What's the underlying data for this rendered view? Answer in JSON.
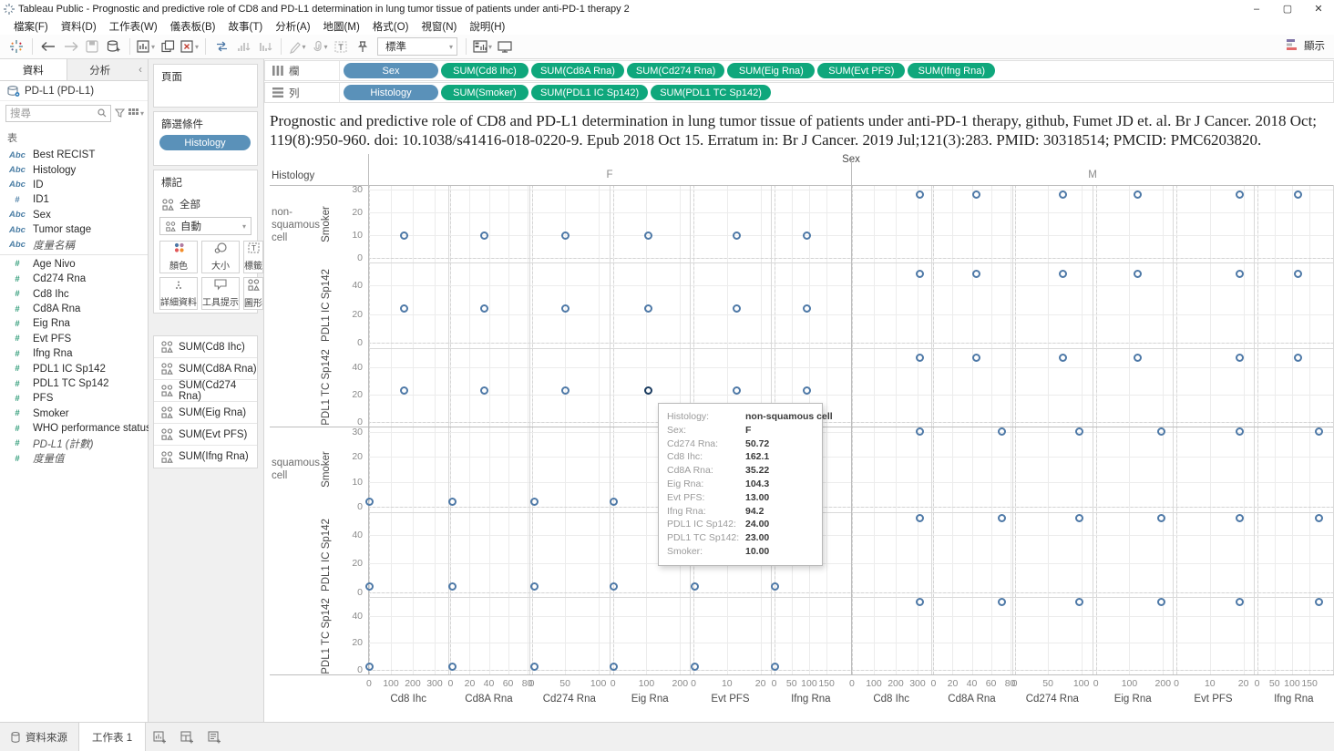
{
  "window": {
    "title": "Tableau Public - Prognostic and predictive role of CD8 and PD-L1 determination in lung tumor tissue of patients under anti-PD-1 therapy 2",
    "minimize": "–",
    "maximize": "▢",
    "close": "✕"
  },
  "menu": {
    "items": [
      "檔案(F)",
      "資料(D)",
      "工作表(W)",
      "儀表板(B)",
      "故事(T)",
      "分析(A)",
      "地圖(M)",
      "格式(O)",
      "視窗(N)",
      "說明(H)"
    ]
  },
  "toolbar": {
    "fit_dropdown": "標準",
    "show_me_label": "顯示"
  },
  "sidebar": {
    "data_tab": "資料",
    "analytics_tab": "分析",
    "collapse": "‹",
    "datasource": "PD-L1 (PD-L1)",
    "search_placeholder": "搜尋",
    "tables_label": "表",
    "fields": [
      {
        "icon": "Abc",
        "name": "Best RECIST"
      },
      {
        "icon": "Abc",
        "name": "Histology"
      },
      {
        "icon": "Abc",
        "name": "ID"
      },
      {
        "icon": "#",
        "name": "ID1",
        "blue": true
      },
      {
        "icon": "Abc",
        "name": "Sex"
      },
      {
        "icon": "Abc",
        "name": "Tumor stage"
      },
      {
        "icon": "Abc",
        "name": "度量名稱",
        "italic": true
      },
      {
        "divider": true
      },
      {
        "icon": "#",
        "name": "Age Nivo"
      },
      {
        "icon": "#",
        "name": "Cd274 Rna"
      },
      {
        "icon": "#",
        "name": "Cd8 Ihc"
      },
      {
        "icon": "#",
        "name": "Cd8A Rna"
      },
      {
        "icon": "#",
        "name": "Eig Rna"
      },
      {
        "icon": "#",
        "name": "Evt PFS"
      },
      {
        "icon": "#",
        "name": "Ifng Rna"
      },
      {
        "icon": "#",
        "name": "PDL1 IC Sp142"
      },
      {
        "icon": "#",
        "name": "PDL1 TC Sp142"
      },
      {
        "icon": "#",
        "name": "PFS"
      },
      {
        "icon": "#",
        "name": "Smoker"
      },
      {
        "icon": "#",
        "name": "WHO performance status"
      },
      {
        "icon": "#",
        "name": "PD-L1 (計數)",
        "italic": true
      },
      {
        "icon": "#",
        "name": "度量值",
        "italic": true
      }
    ]
  },
  "cards": {
    "pages_title": "頁面",
    "filters_title": "篩選條件",
    "filter_pill": "Histology",
    "marks_title": "標記",
    "marks_all": "全部",
    "marks_type": "自動",
    "buttons": [
      "顏色",
      "大小",
      "標籤",
      "詳細資料",
      "工具提示",
      "圖形"
    ],
    "shape_items": [
      "SUM(Cd8 Ihc)",
      "SUM(Cd8A Rna)",
      "SUM(Cd274 Rna)",
      "SUM(Eig Rna)",
      "SUM(Evt PFS)",
      "SUM(Ifng Rna)"
    ]
  },
  "shelves": {
    "columns_label": "欄",
    "rows_label": "列",
    "columns_pills": [
      {
        "label": "Sex",
        "type": "dim"
      },
      {
        "label": "SUM(Cd8 Ihc)",
        "type": "meas"
      },
      {
        "label": "SUM(Cd8A Rna)",
        "type": "meas"
      },
      {
        "label": "SUM(Cd274 Rna)",
        "type": "meas"
      },
      {
        "label": "SUM(Eig Rna)",
        "type": "meas"
      },
      {
        "label": "SUM(Evt PFS)",
        "type": "meas"
      },
      {
        "label": "SUM(Ifng Rna)",
        "type": "meas"
      }
    ],
    "rows_pills": [
      {
        "label": "Histology",
        "type": "dim"
      },
      {
        "label": "SUM(Smoker)",
        "type": "meas"
      },
      {
        "label": "SUM(PDL1 IC Sp142)",
        "type": "meas"
      },
      {
        "label": "SUM(PDL1 TC Sp142)",
        "type": "meas"
      }
    ]
  },
  "viz": {
    "title": "Prognostic and predictive role of CD8 and PD-L1 determination in lung tumor tissue of patients under anti-PD-1 therapy, github, Fumet JD et. al. Br J Cancer. 2018 Oct; 119(8):950-960. doi: 10.1038/s41416-018-0220-9. Epub 2018 Oct 15. Erratum in: Br J Cancer. 2019 Jul;121(3):283. PMID: 30318514; PMCID: PMC6203820.",
    "col_field_label": "Sex",
    "row_field_label": "Histology"
  },
  "chart_data": {
    "type": "scatter",
    "layout": "scatter-matrix 12 columns x 6 rows; columns = 6 x-measures repeated for Sex F then M; rows = 3 y-measures repeated for each Histology group; one SUM mark per pane",
    "col_groups": [
      "F",
      "M"
    ],
    "row_groups": [
      "non-squamous cell",
      "squamous cell"
    ],
    "x_measures": [
      {
        "name": "Cd8 Ihc",
        "ticks": [
          0,
          100,
          200,
          300
        ],
        "min": -4,
        "max": 364
      },
      {
        "name": "Cd8A Rna",
        "ticks": [
          0,
          20,
          40,
          60,
          80
        ],
        "min": -2,
        "max": 82
      },
      {
        "name": "Cd274 Rna",
        "ticks": [
          0,
          50,
          100
        ],
        "min": -4,
        "max": 117
      },
      {
        "name": "Eig Rna",
        "ticks": [
          0,
          100,
          200
        ],
        "min": -10,
        "max": 230
      },
      {
        "name": "Evt PFS",
        "ticks": [
          0,
          10,
          20
        ],
        "min": -1,
        "max": 23
      },
      {
        "name": "Ifng Rna",
        "ticks": [
          0,
          50,
          100,
          150
        ],
        "min": -10,
        "max": 220
      }
    ],
    "y_measures": [
      {
        "name": "Smoker",
        "ticks": [
          0,
          10,
          20,
          30
        ],
        "min": -2,
        "max": 32
      },
      {
        "name": "PDL1 IC Sp142",
        "ticks": [
          0,
          20,
          40
        ],
        "min": -3.5,
        "max": 56
      },
      {
        "name": "PDL1 TC Sp142",
        "ticks": [
          0,
          20,
          40
        ],
        "min": -3.5,
        "max": 54
      }
    ],
    "groups": [
      {
        "sex": "F",
        "histology": "non-squamous cell",
        "sums": {
          "Cd8 Ihc": 162.1,
          "Cd8A Rna": 35.22,
          "Cd274 Rna": 50.72,
          "Eig Rna": 104.3,
          "Evt PFS": 13.0,
          "Ifng Rna": 94.2,
          "Smoker": 10.0,
          "PDL1 IC Sp142": 24.0,
          "PDL1 TC Sp142": 23.0
        }
      },
      {
        "sex": "M",
        "histology": "non-squamous cell",
        "sums": {
          "Cd8 Ihc": 310,
          "Cd8A Rna": 45,
          "Cd274 Rna": 72,
          "Eig Rna": 125,
          "Evt PFS": 19,
          "Ifng Rna": 116,
          "Smoker": 28,
          "PDL1 IC Sp142": 48,
          "PDL1 TC Sp142": 47
        }
      },
      {
        "sex": "F",
        "histology": "squamous cell",
        "sums": {
          "Cd8 Ihc": 4,
          "Cd8A Rna": 2,
          "Cd274 Rna": 4,
          "Eig Rna": 2,
          "Evt PFS": 0.3,
          "Ifng Rna": 2,
          "Smoker": 2,
          "PDL1 IC Sp142": 4,
          "PDL1 TC Sp142": 2
        }
      },
      {
        "sex": "M",
        "histology": "squamous cell",
        "sums": {
          "Cd8 Ihc": 312,
          "Cd8A Rna": 71,
          "Cd274 Rna": 97,
          "Eig Rna": 194,
          "Evt PFS": 19,
          "Ifng Rna": 178,
          "Smoker": 30,
          "PDL1 IC Sp142": 52,
          "PDL1 TC Sp142": 50
        }
      }
    ],
    "highlight": {
      "sex": "F",
      "histology": "non-squamous cell",
      "x_measure": "Eig Rna",
      "y_measure": "PDL1 TC Sp142"
    }
  },
  "tooltip": {
    "rows": [
      {
        "label": "Histology:",
        "value": "non-squamous cell"
      },
      {
        "label": "Sex:",
        "value": "F"
      },
      {
        "label": "Cd274 Rna:",
        "value": "50.72"
      },
      {
        "label": "Cd8 Ihc:",
        "value": "162.1"
      },
      {
        "label": "Cd8A Rna:",
        "value": "35.22"
      },
      {
        "label": "Eig Rna:",
        "value": "104.3"
      },
      {
        "label": "Evt PFS:",
        "value": "13.00"
      },
      {
        "label": "Ifng Rna:",
        "value": "94.2"
      },
      {
        "label": "PDL1 IC Sp142:",
        "value": "24.00"
      },
      {
        "label": "PDL1 TC Sp142:",
        "value": "23.00"
      },
      {
        "label": "Smoker:",
        "value": "10.00"
      }
    ]
  },
  "status_bar": {
    "datasource_tab": "資料來源",
    "sheet_tab": "工作表 1"
  },
  "colors": {
    "dimension_pill": "#5a91b9",
    "measure_pill": "#0fa77c",
    "mark_stroke": "#4e79a7",
    "highlight_stroke": "#1b3c60"
  }
}
